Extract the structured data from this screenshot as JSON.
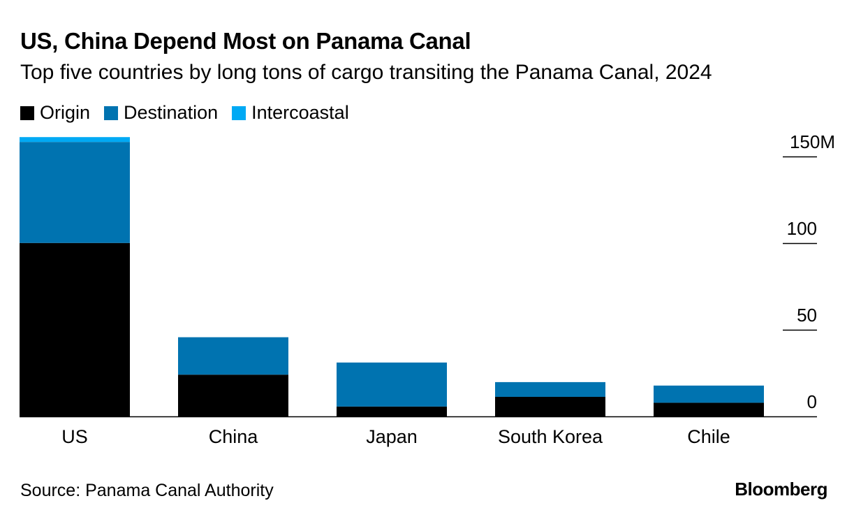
{
  "title": "US, China Depend Most on Panama Canal",
  "subtitle": "Top five countries by long tons of cargo transiting the Panama Canal, 2024",
  "legend": [
    {
      "label": "Origin",
      "color": "#000000"
    },
    {
      "label": "Destination",
      "color": "#0073b0"
    },
    {
      "label": "Intercoastal",
      "color": "#00a9f4"
    }
  ],
  "source": "Source: Panama Canal Authority",
  "logo": "Bloomberg",
  "chart_data": {
    "type": "bar",
    "stacked": true,
    "categories": [
      "US",
      "China",
      "Japan",
      "South Korea",
      "Chile"
    ],
    "series": [
      {
        "name": "Origin",
        "color": "#000000",
        "values": [
          100.1,
          24.1,
          5.7,
          11.3,
          7.9
        ]
      },
      {
        "name": "Destination",
        "color": "#0073b0",
        "values": [
          58.3,
          21.6,
          25.4,
          8.5,
          9.9
        ]
      },
      {
        "name": "Intercoastal",
        "color": "#00a9f4",
        "values": [
          2.8,
          0,
          0,
          0,
          0
        ]
      }
    ],
    "yticks": [
      {
        "value": 150,
        "label": "150M"
      },
      {
        "value": 100,
        "label": "100"
      },
      {
        "value": 50,
        "label": "50"
      },
      {
        "value": 0,
        "label": "0"
      }
    ],
    "ylim": [
      0,
      160
    ],
    "grid": false,
    "y_axis_position": "right"
  }
}
